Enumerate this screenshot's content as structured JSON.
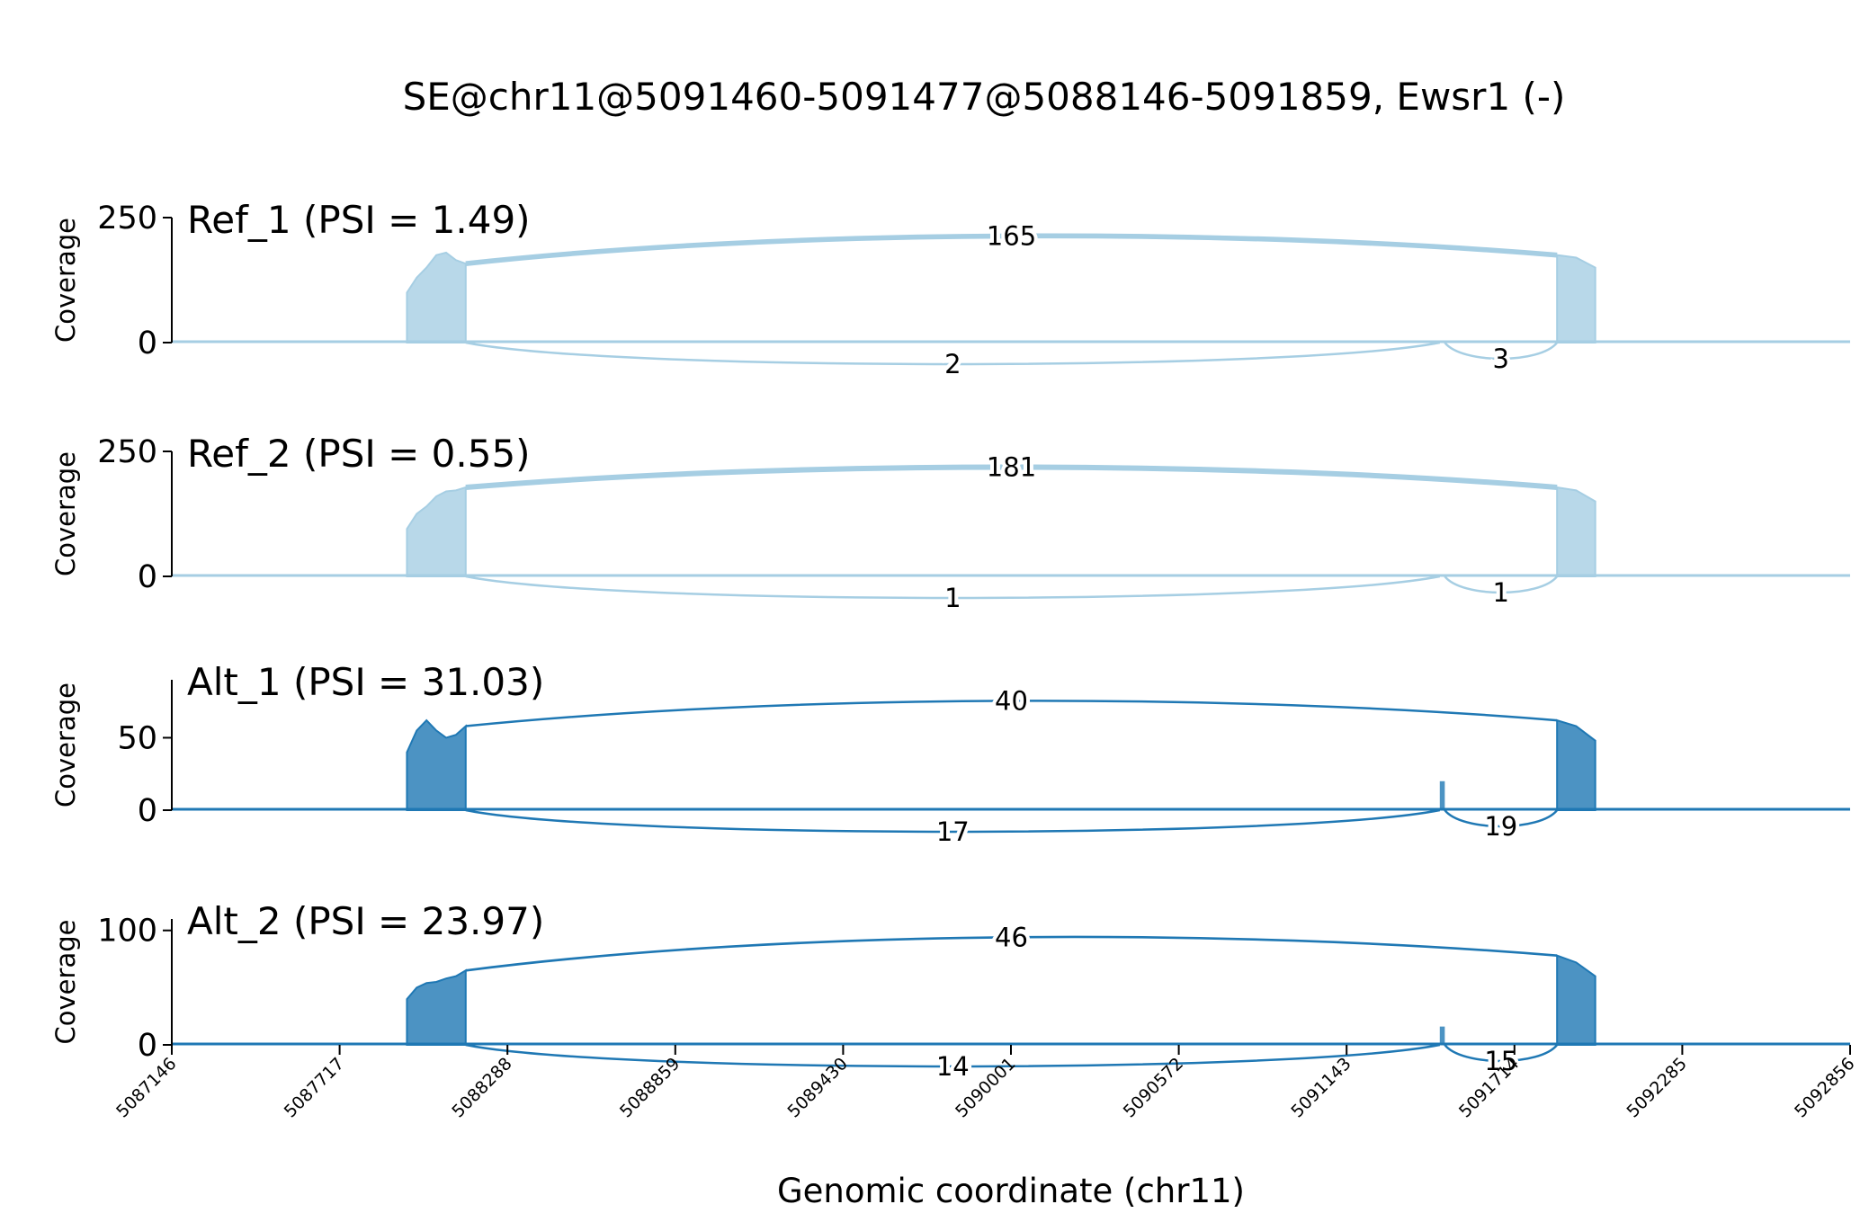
{
  "chart_data": {
    "type": "sashimi",
    "title": "SE@chr11@5091460-5091477@5088146-5091859, Ewsr1 (-)",
    "xlabel": "Genomic coordinate (chr11)",
    "ylabel": "Coverage",
    "xlim": [
      5087146,
      5092856
    ],
    "xticks": [
      "5087146",
      "5087717",
      "5088288",
      "5088859",
      "5089430",
      "5090001",
      "5090572",
      "5091143",
      "5091714",
      "5092285",
      "5092856"
    ],
    "exons": {
      "upstream": [
        5087946,
        5088146
      ],
      "skipped": [
        5091460,
        5091477
      ],
      "downstream": [
        5091859,
        5091989
      ]
    },
    "panels": [
      {
        "title": "Ref_1 (PSI = 1.49)",
        "color": "#a6cee3",
        "ylim": [
          0,
          250
        ],
        "yticks": [
          "0",
          "250"
        ],
        "coverage": {
          "upstream_exon": [
            100,
            130,
            150,
            175,
            180,
            165,
            158
          ],
          "skipped_exon": 0,
          "downstream_exon": [
            175,
            170,
            150
          ]
        },
        "junctions": [
          {
            "from": 5088146,
            "to": 5091859,
            "count": "165",
            "side": "top"
          },
          {
            "from": 5088146,
            "to": 5091460,
            "count": "2",
            "side": "bottom"
          },
          {
            "from": 5091477,
            "to": 5091859,
            "count": "3",
            "side": "bottom"
          }
        ]
      },
      {
        "title": "Ref_2 (PSI = 0.55)",
        "color": "#a6cee3",
        "ylim": [
          0,
          250
        ],
        "yticks": [
          "0",
          "250"
        ],
        "coverage": {
          "upstream_exon": [
            95,
            125,
            140,
            160,
            170,
            172,
            178
          ],
          "skipped_exon": 0,
          "downstream_exon": [
            178,
            172,
            150
          ]
        },
        "junctions": [
          {
            "from": 5088146,
            "to": 5091859,
            "count": "181",
            "side": "top"
          },
          {
            "from": 5088146,
            "to": 5091460,
            "count": "1",
            "side": "bottom"
          },
          {
            "from": 5091477,
            "to": 5091859,
            "count": "1",
            "side": "bottom"
          }
        ]
      },
      {
        "title": "Alt_1 (PSI = 31.03)",
        "color": "#1f78b4",
        "ylim": [
          0,
          90
        ],
        "yticks": [
          "0",
          "50"
        ],
        "coverage": {
          "upstream_exon": [
            40,
            55,
            62,
            55,
            50,
            52,
            58
          ],
          "skipped_exon": 20,
          "downstream_exon": [
            62,
            58,
            48
          ]
        },
        "junctions": [
          {
            "from": 5088146,
            "to": 5091859,
            "count": "40",
            "side": "top"
          },
          {
            "from": 5088146,
            "to": 5091460,
            "count": "17",
            "side": "bottom"
          },
          {
            "from": 5091477,
            "to": 5091859,
            "count": "19",
            "side": "bottom"
          }
        ]
      },
      {
        "title": "Alt_2 (PSI = 23.97)",
        "color": "#1f78b4",
        "ylim": [
          0,
          110
        ],
        "yticks": [
          "0",
          "100"
        ],
        "coverage": {
          "upstream_exon": [
            40,
            50,
            54,
            55,
            58,
            60,
            65
          ],
          "skipped_exon": 16,
          "downstream_exon": [
            78,
            72,
            60
          ]
        },
        "junctions": [
          {
            "from": 5088146,
            "to": 5091859,
            "count": "46",
            "side": "top"
          },
          {
            "from": 5088146,
            "to": 5091460,
            "count": "14",
            "side": "bottom"
          },
          {
            "from": 5091477,
            "to": 5091859,
            "count": "15",
            "side": "bottom"
          }
        ]
      }
    ]
  }
}
